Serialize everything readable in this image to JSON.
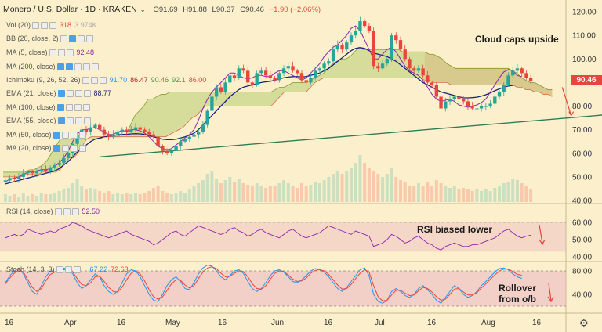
{
  "header": {
    "symbol": "Monero / U.S. Dollar",
    "interval": "1D",
    "exchange": "KRAKEN",
    "open": "O91.69",
    "high": "H91.88",
    "low": "L90.37",
    "close": "C90.46",
    "change": "−1.90 (−2.06%)"
  },
  "indicators": [
    {
      "label": "Vol (20)",
      "v1": "318",
      "v2": "3.974K",
      "c1": "#e8453c",
      "c2": "#aaaaaa"
    },
    {
      "label": "BB (20, close, 2)",
      "v1": "",
      "v2": "",
      "c1": "#555555",
      "c2": "#555555"
    },
    {
      "label": "MA (5, close)",
      "v1": "92.48",
      "v2": "",
      "c1": "#8e24aa",
      "c2": "#555555"
    },
    {
      "label": "MA (200, close)",
      "v1": "",
      "v2": "",
      "c1": "#555555",
      "c2": "#555555"
    },
    {
      "label": "Ichimoku (9, 26, 52, 26)",
      "v1": "91.70",
      "v2": "86.47",
      "v3": "90.46",
      "v4": "92.1",
      "v5": "86.00",
      "c1": "#2196f3",
      "c2": "#b71c1c",
      "c3": "#43a047",
      "c4": "#43a047",
      "c5": "#e8453c"
    },
    {
      "label": "EMA (21, close)",
      "v1": "88.77",
      "v2": "",
      "c1": "#1a237e",
      "c2": "#555555"
    },
    {
      "label": "MA (100, close)",
      "v1": "",
      "v2": "",
      "c1": "#555555",
      "c2": "#555555"
    },
    {
      "label": "EMA (55, close)",
      "v1": "",
      "v2": "",
      "c1": "#555555",
      "c2": "#555555"
    },
    {
      "label": "MA (50, close)",
      "v1": "",
      "v2": "",
      "c1": "#555555",
      "c2": "#555555"
    },
    {
      "label": "MA (20, close)",
      "v1": "",
      "v2": "",
      "c1": "#555555",
      "c2": "#555555"
    }
  ],
  "rsi_label": {
    "label": "RSI (14, close)",
    "value": "52.50"
  },
  "stoch_label": {
    "label": "Stoch (14, 3, 3)",
    "v1": "67.22",
    "v2": "72.63"
  },
  "annotations": {
    "cloud": "Cloud caps upside",
    "rsi": "RSI biased lower",
    "stoch_1": "Rollover",
    "stoch_2": "from o/b"
  },
  "price_badge": "90.46",
  "colors": {
    "bull": "#26a69a",
    "bear": "#e8453c",
    "cloud": "#8fb83a",
    "cloud_bear": "#e8453c",
    "ema": "#1a237e",
    "ma5": "#8e24aa",
    "trend": "#2e7d57",
    "rsi": "#8e24aa",
    "stoch_k": "#2196f3",
    "stoch_d": "#e8453c",
    "background": "#fcf0cc"
  },
  "chart_data": [
    {
      "type": "candlestick",
      "title": "Monero / U.S. Dollar",
      "ylim": [
        40,
        120
      ],
      "yticks": [
        "120.00",
        "110.00",
        "100.00",
        "90.00",
        "80.00",
        "70.00",
        "60.00",
        "50.00",
        "40.00"
      ],
      "xticks": [
        "16",
        "Apr",
        "16",
        "May",
        "16",
        "Jun",
        "16",
        "Jul",
        "16",
        "Aug",
        "16"
      ],
      "close_series": [
        48.5,
        49.5,
        49,
        50,
        51.5,
        52,
        51.5,
        52.5,
        53,
        52.5,
        54,
        55,
        56,
        58,
        60,
        64,
        68,
        70,
        69,
        71,
        72,
        70,
        68,
        67,
        68,
        69,
        70,
        69,
        70,
        71,
        70,
        69,
        68,
        67,
        63,
        61,
        60,
        61,
        63,
        65,
        66,
        67,
        68,
        69,
        72,
        78,
        84,
        88,
        86,
        90,
        93,
        92,
        96,
        95,
        90,
        89,
        94,
        95,
        93,
        92,
        91,
        94,
        96,
        97,
        95,
        94,
        91,
        90,
        92,
        95,
        96,
        98,
        99,
        104,
        106,
        104,
        107,
        110,
        112,
        116,
        114,
        112,
        97,
        96,
        98,
        100,
        110,
        108,
        104,
        100,
        96,
        95,
        96,
        93,
        90,
        89,
        84,
        79,
        82,
        83,
        84,
        83,
        82,
        80,
        79,
        79,
        80,
        80,
        81,
        84,
        86,
        89,
        93,
        95,
        96,
        94,
        92,
        90.46
      ],
      "ma5_series": [
        48,
        49,
        49.5,
        50,
        51,
        52,
        52,
        52.5,
        53,
        53,
        53.5,
        54.5,
        56,
        58,
        61,
        65,
        68,
        70,
        70,
        70.5,
        71,
        70,
        69,
        68,
        68,
        69,
        69.5,
        69.5,
        70,
        70,
        69.5,
        68.5,
        67,
        65,
        63,
        62,
        61.5,
        62,
        63.5,
        65,
        66.5,
        68,
        70,
        74,
        79,
        83,
        86,
        88,
        90,
        92,
        94,
        94,
        93,
        92,
        91.5,
        92,
        93,
        93,
        92.5,
        92.5,
        94,
        95,
        95,
        94,
        93,
        92,
        91,
        92,
        94,
        96,
        98,
        101,
        103,
        105,
        106,
        108,
        110,
        113,
        114,
        112,
        108,
        104,
        100,
        100,
        102,
        104,
        105,
        103,
        100,
        97,
        95,
        94,
        93,
        91,
        88,
        85,
        83,
        82,
        82.5,
        83,
        82,
        80.5,
        80,
        79.5,
        80,
        80.5,
        81.5,
        83,
        86,
        89,
        92,
        94.5,
        95.5,
        95,
        93,
        92.48
      ],
      "ema21_series": [
        47,
        47.5,
        48,
        48.5,
        49,
        49.5,
        50,
        50.5,
        51,
        51.5,
        52,
        52.5,
        53.5,
        55,
        56.5,
        58.5,
        60.5,
        62,
        63.5,
        65,
        66,
        66.5,
        67,
        67.2,
        67.5,
        67.8,
        68,
        68,
        68.2,
        68.3,
        68.2,
        68,
        67.5,
        67,
        66.5,
        66,
        65.8,
        65.8,
        66,
        66.5,
        67,
        67.7,
        68.5,
        70,
        72,
        74,
        76,
        78,
        80,
        82,
        84,
        85.5,
        87,
        88,
        88.5,
        89,
        89.5,
        90,
        90.3,
        90.5,
        91,
        91.5,
        92,
        92.3,
        92.5,
        92.5,
        92.4,
        92.5,
        93,
        93.5,
        94,
        95,
        96,
        97.5,
        99,
        100.5,
        102,
        103.5,
        104.5,
        104.8,
        104.5,
        103.5,
        102.5,
        102,
        101.5,
        101,
        100,
        99,
        97.5,
        96,
        94.5,
        93,
        91.5,
        90,
        89,
        88,
        87,
        86,
        85.5,
        85,
        84.5,
        84,
        83.5,
        83.5,
        83.6,
        83.8,
        84.2,
        84.8,
        85.6,
        86.5,
        87.3,
        88,
        88.5,
        88.77
      ],
      "cloud_upper": [
        52,
        52,
        52,
        52,
        52,
        52,
        53,
        53,
        54,
        55,
        57,
        60,
        63,
        66,
        66,
        66,
        66,
        66,
        66,
        66,
        66,
        66,
        66,
        67,
        67,
        67,
        67,
        68,
        68,
        72,
        76,
        78,
        80,
        83,
        83,
        84,
        85,
        85,
        86,
        86,
        86,
        86,
        86,
        86,
        86,
        86,
        86,
        86,
        86,
        86,
        86,
        86,
        86,
        86,
        86,
        86,
        86,
        86,
        86,
        86,
        86,
        86,
        87,
        88,
        88,
        89,
        90,
        90,
        90,
        90,
        91,
        92,
        93,
        94,
        96,
        98,
        99,
        100,
        100,
        101,
        103,
        105,
        104,
        104,
        104,
        104,
        104,
        104,
        104,
        104,
        104,
        103,
        103,
        103,
        103,
        103,
        103,
        102,
        102,
        101,
        100,
        98,
        97,
        96,
        96,
        96,
        96,
        96,
        96,
        96,
        96,
        96,
        96,
        96,
        96,
        96,
        95,
        94,
        92,
        91,
        90,
        90,
        89,
        88,
        87,
        87
      ],
      "cloud_lower": [
        50,
        50,
        50,
        50,
        50,
        51,
        51,
        51,
        51,
        52,
        52,
        52,
        52,
        53,
        56,
        58,
        58,
        60,
        63,
        66,
        67,
        67,
        67,
        67,
        67,
        67,
        67,
        67,
        67,
        67,
        67,
        67,
        67,
        67,
        67,
        67,
        67,
        67,
        68,
        69,
        70,
        71,
        73,
        75,
        76,
        78,
        80,
        80,
        80,
        80,
        80,
        80,
        80,
        80,
        80,
        80,
        80,
        80,
        80,
        80,
        80,
        80,
        82,
        84,
        86,
        86,
        86,
        86,
        86,
        86,
        88,
        90,
        91,
        92,
        92,
        92,
        92,
        92,
        92,
        92,
        92,
        92,
        92,
        92,
        92,
        92,
        92,
        92,
        92,
        92,
        92,
        92,
        92,
        92,
        92,
        92,
        91,
        91,
        90,
        90,
        90,
        90,
        89,
        89,
        89,
        89,
        89,
        89,
        89,
        89,
        89,
        89,
        89,
        89,
        89,
        89,
        89,
        88,
        88,
        87,
        87,
        86,
        86,
        85,
        85,
        84
      ],
      "volume": [
        0.05,
        0.04,
        0.05,
        0.03,
        0.06,
        0.04,
        0.05,
        0.04,
        0.06,
        0.05,
        0.05,
        0.06,
        0.07,
        0.08,
        0.09,
        0.12,
        0.15,
        0.1,
        0.08,
        0.09,
        0.08,
        0.07,
        0.06,
        0.07,
        0.05,
        0.06,
        0.05,
        0.06,
        0.05,
        0.06,
        0.05,
        0.06,
        0.07,
        0.09,
        0.1,
        0.07,
        0.06,
        0.05,
        0.06,
        0.07,
        0.06,
        0.08,
        0.1,
        0.12,
        0.14,
        0.18,
        0.2,
        0.15,
        0.12,
        0.14,
        0.16,
        0.13,
        0.15,
        0.12,
        0.11,
        0.1,
        0.12,
        0.1,
        0.09,
        0.1,
        0.1,
        0.12,
        0.14,
        0.12,
        0.1,
        0.09,
        0.12,
        0.1,
        0.11,
        0.13,
        0.12,
        0.14,
        0.16,
        0.18,
        0.2,
        0.18,
        0.2,
        0.22,
        0.25,
        0.3,
        0.25,
        0.22,
        0.2,
        0.18,
        0.16,
        0.18,
        0.22,
        0.16,
        0.14,
        0.13,
        0.1,
        0.1,
        0.12,
        0.1,
        0.13,
        0.1,
        0.14,
        0.12,
        0.1,
        0.09,
        0.1,
        0.08,
        0.09,
        0.08,
        0.07,
        0.08,
        0.07,
        0.08,
        0.07,
        0.09,
        0.1,
        0.12,
        0.13,
        0.15,
        0.14,
        0.12,
        0.1,
        0.08
      ],
      "trendline": {
        "from": [
          21,
          58.5
        ],
        "to": [
          138,
          77
        ]
      },
      "projection_arrow": {
        "from": [
          124,
          88
        ],
        "to": [
          126,
          76
        ]
      }
    },
    {
      "type": "line",
      "title": "RSI (14, close)",
      "ylim": [
        38,
        62
      ],
      "yticks": [
        "60.00",
        "50.00",
        "40.00"
      ],
      "overbought_band": [
        43,
        60
      ],
      "values": [
        51,
        52,
        53,
        52,
        53,
        56,
        55,
        54,
        53,
        54,
        55,
        54,
        56,
        57,
        58,
        60,
        59,
        58,
        56,
        55,
        54,
        53,
        52,
        51,
        52,
        53,
        54,
        55,
        53,
        52,
        51,
        50,
        49,
        47,
        48,
        50,
        52,
        54,
        55,
        53,
        52,
        54,
        56,
        58,
        57,
        56,
        55,
        54,
        53,
        54,
        56,
        57,
        55,
        54,
        52,
        53,
        55,
        56,
        54,
        53,
        52,
        51,
        53,
        55,
        56,
        54,
        52,
        51,
        52,
        53,
        54,
        56,
        58,
        57,
        56,
        55,
        54,
        53,
        55,
        54,
        53,
        52,
        46,
        47,
        48,
        50,
        53,
        52,
        50,
        48,
        49,
        51,
        52,
        50,
        48,
        47,
        45,
        44,
        46,
        47,
        48,
        47,
        46,
        46,
        47,
        47,
        48,
        49,
        50,
        51,
        53,
        55,
        56,
        54,
        52,
        51,
        52,
        52.5
      ]
    },
    {
      "type": "line",
      "title": "Stoch (14, 3, 3)",
      "ylim": [
        20,
        100
      ],
      "yticks": [
        "80.00",
        "40.00"
      ],
      "band": [
        20,
        80
      ],
      "series": [
        {
          "values": [
            60,
            72,
            80,
            85,
            75,
            60,
            45,
            40,
            55,
            70,
            80,
            78,
            82,
            85,
            83,
            75,
            60,
            50,
            55,
            65,
            75,
            70,
            55,
            45,
            40,
            45,
            60,
            75,
            82,
            80,
            70,
            55,
            40,
            30,
            28,
            40,
            55,
            65,
            70,
            62,
            50,
            48,
            60,
            75,
            85,
            90,
            88,
            80,
            70,
            65,
            72,
            80,
            82,
            76,
            62,
            50,
            45,
            50,
            60,
            72,
            80,
            82,
            78,
            70,
            62,
            60,
            65,
            72,
            80,
            84,
            82,
            78,
            70,
            60,
            50,
            45,
            52,
            62,
            72,
            82,
            85,
            72,
            40,
            28,
            25,
            30,
            45,
            50,
            45,
            38,
            35,
            40,
            50,
            55,
            48,
            40,
            30,
            25,
            35,
            45,
            55,
            50,
            40,
            35,
            38,
            45,
            55,
            62,
            70,
            78,
            84,
            85,
            82,
            75,
            70,
            67.22
          ]
        },
        {
          "values": [
            58,
            68,
            76,
            82,
            78,
            65,
            52,
            45,
            50,
            63,
            74,
            78,
            80,
            82,
            83,
            78,
            67,
            57,
            55,
            60,
            70,
            71,
            62,
            52,
            45,
            44,
            52,
            65,
            76,
            80,
            75,
            63,
            48,
            36,
            32,
            36,
            47,
            58,
            65,
            64,
            56,
            51,
            55,
            67,
            78,
            85,
            87,
            84,
            76,
            70,
            71,
            76,
            80,
            79,
            70,
            58,
            50,
            49,
            55,
            66,
            76,
            80,
            79,
            73,
            66,
            62,
            63,
            68,
            76,
            81,
            82,
            80,
            74,
            65,
            56,
            49,
            50,
            57,
            67,
            76,
            82,
            78,
            55,
            36,
            29,
            30,
            39,
            47,
            47,
            42,
            38,
            39,
            46,
            52,
            50,
            44,
            36,
            30,
            32,
            40,
            49,
            50,
            44,
            39,
            39,
            43,
            51,
            58,
            66,
            73,
            80,
            83,
            83,
            79,
            74,
            72.63
          ]
        }
      ]
    }
  ]
}
